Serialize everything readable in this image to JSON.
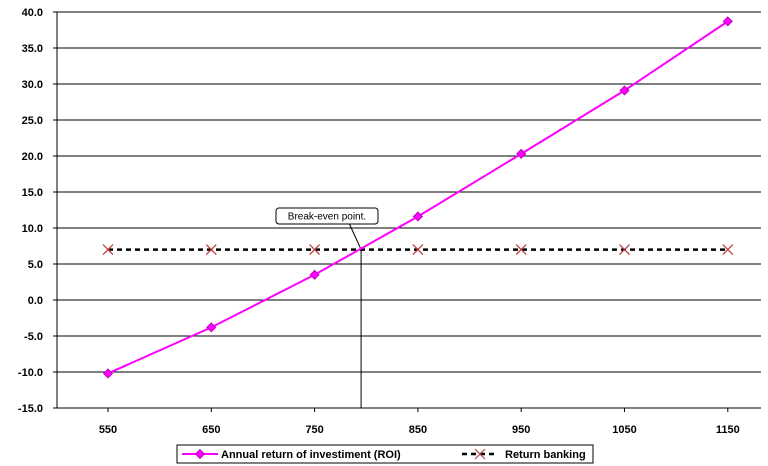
{
  "chart_data": {
    "type": "line",
    "categories": [
      "550",
      "650",
      "750",
      "850",
      "950",
      "1050",
      "1150"
    ],
    "x": [
      550,
      650,
      750,
      850,
      950,
      1050,
      1150
    ],
    "series": [
      {
        "name": "Annual return of investiment (ROI)",
        "values": [
          -10.2,
          -3.8,
          3.5,
          11.6,
          20.3,
          29.1,
          38.7
        ],
        "color": "#ff00ff",
        "marker": "diamond",
        "line_style": "solid"
      },
      {
        "name": "Return banking",
        "values": [
          7.0,
          7.0,
          7.0,
          7.0,
          7.0,
          7.0,
          7.0
        ],
        "color": "#000000",
        "marker": "x",
        "marker_color": "#c04040",
        "line_style": "dashed"
      }
    ],
    "ylim": [
      -15,
      40
    ],
    "yticks": [
      "40.0",
      "35.0",
      "30.0",
      "25.0",
      "20.0",
      "15.0",
      "10.0",
      "5.0",
      "0.0",
      "-5.0",
      "-10.0",
      "-15.0"
    ],
    "grid": true,
    "legend_position": "bottom",
    "annotation": {
      "text": "Break-even point.",
      "x": 795,
      "y": 7.0
    }
  }
}
